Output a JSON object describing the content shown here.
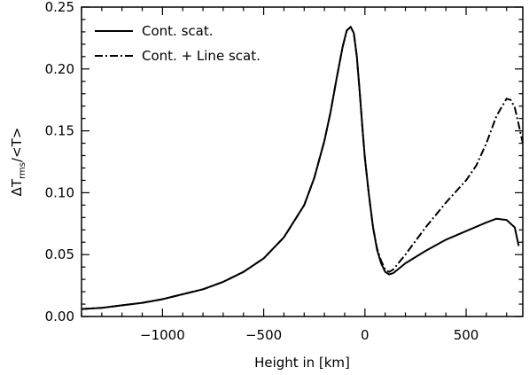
{
  "chart_data": {
    "type": "line",
    "xlabel": "Height in [km]",
    "ylabel": {
      "prefix": "ΔT",
      "subscript": "rms",
      "suffix": "/<T>"
    },
    "xlim": [
      -1400,
      780
    ],
    "ylim": [
      0.0,
      0.25
    ],
    "x_ticks": [
      -1000,
      -500,
      0,
      500
    ],
    "x_tick_labels": [
      "−1000",
      "−500",
      "0",
      "500"
    ],
    "y_ticks": [
      0.0,
      0.05,
      0.1,
      0.15,
      0.2,
      0.25
    ],
    "y_tick_labels": [
      "0.00",
      "0.05",
      "0.10",
      "0.15",
      "0.20",
      "0.25"
    ],
    "grid": false,
    "legend_position": "top-left",
    "series": [
      {
        "name": "Cont. scat.",
        "style": "solid",
        "color": "#000000",
        "x": [
          -1400,
          -1300,
          -1200,
          -1100,
          -1000,
          -900,
          -800,
          -700,
          -600,
          -500,
          -400,
          -300,
          -250,
          -200,
          -170,
          -140,
          -110,
          -90,
          -70,
          -55,
          -40,
          -25,
          -10,
          0,
          20,
          40,
          60,
          80,
          100,
          120,
          140,
          200,
          300,
          400,
          500,
          600,
          650,
          700,
          740,
          760
        ],
        "y": [
          0.006,
          0.007,
          0.009,
          0.011,
          0.014,
          0.018,
          0.022,
          0.028,
          0.036,
          0.047,
          0.064,
          0.09,
          0.112,
          0.142,
          0.165,
          0.192,
          0.218,
          0.231,
          0.234,
          0.229,
          0.21,
          0.18,
          0.148,
          0.128,
          0.098,
          0.072,
          0.054,
          0.043,
          0.036,
          0.034,
          0.035,
          0.043,
          0.053,
          0.062,
          0.069,
          0.076,
          0.079,
          0.078,
          0.072,
          0.057
        ]
      },
      {
        "name": "Cont. + Line scat.",
        "style": "dash-dot",
        "color": "#000000",
        "x": [
          -1400,
          -1300,
          -1200,
          -1100,
          -1000,
          -900,
          -800,
          -700,
          -600,
          -500,
          -400,
          -300,
          -250,
          -200,
          -170,
          -140,
          -110,
          -90,
          -70,
          -55,
          -40,
          -25,
          -10,
          0,
          20,
          40,
          60,
          80,
          100,
          120,
          140,
          200,
          300,
          400,
          500,
          550,
          600,
          650,
          700,
          720,
          740,
          760,
          780
        ],
        "y": [
          0.006,
          0.007,
          0.009,
          0.011,
          0.014,
          0.018,
          0.022,
          0.028,
          0.036,
          0.047,
          0.064,
          0.09,
          0.112,
          0.142,
          0.165,
          0.192,
          0.218,
          0.231,
          0.234,
          0.229,
          0.21,
          0.18,
          0.148,
          0.128,
          0.098,
          0.072,
          0.055,
          0.045,
          0.038,
          0.036,
          0.038,
          0.05,
          0.072,
          0.092,
          0.11,
          0.122,
          0.14,
          0.162,
          0.176,
          0.175,
          0.169,
          0.155,
          0.14
        ]
      }
    ]
  }
}
